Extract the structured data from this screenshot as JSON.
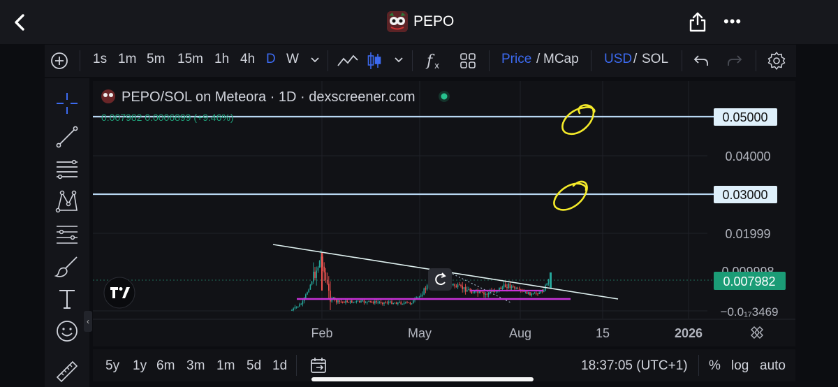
{
  "app": {
    "title": "PEPO"
  },
  "toolbar": {
    "intervals": [
      "1s",
      "1m",
      "5m",
      "15m",
      "1h",
      "4h",
      "D",
      "W"
    ],
    "active_interval": "D",
    "price_label": "Price",
    "mcap_label": "MCap",
    "usd_label": "USD",
    "sol_label": "SOL",
    "slash": "/"
  },
  "chart": {
    "legend_title": "PEPO/SOL on Meteora · 1D · dexscreener.com",
    "ohlc_text": "0.007982  0.0006899 (+9.46%)",
    "price_tags": {
      "upper_line": "0.05000",
      "lower_line": "0.03000",
      "current": "0.007982"
    },
    "y_ticks": [
      "0.04000",
      "0.01999",
      "0.009998",
      "−0.0₁₇3469"
    ],
    "x_ticks": [
      "Feb",
      "May",
      "Aug",
      "15",
      "2026"
    ],
    "colors": {
      "up": "#26a69a",
      "down": "#ef5350",
      "line": "#b9d8f2",
      "trend": "#e0f2f1",
      "support": "#c832d8",
      "annotation": "#f4ea2a",
      "current_tag": "#1b9c76",
      "level_tag": "#dff0fb"
    }
  },
  "bottombar": {
    "ranges": [
      "5y",
      "1y",
      "6m",
      "3m",
      "1m",
      "5d",
      "1d"
    ],
    "time": "18:37:05 (UTC+1)",
    "percent": "%",
    "log": "log",
    "auto": "auto"
  }
}
